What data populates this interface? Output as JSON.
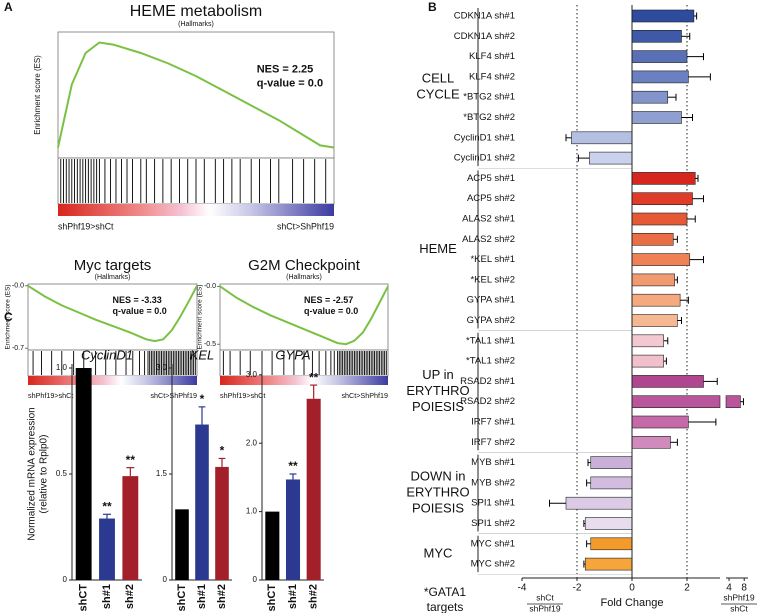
{
  "panel_labels": [
    "A",
    "B",
    "C"
  ],
  "chart_data": [
    {
      "type": "line",
      "title": "HEME metabolism",
      "subtitle": "(Hallmarks)",
      "ylabel": "Enrichment score (ES)",
      "annotations": [
        "NES = 2.25",
        "q-value = 0.0"
      ],
      "left_label": "shPhf19>shCt",
      "right_label": "shCt>ShPhf19",
      "color": "#7ac143",
      "xlim": [
        0,
        100
      ],
      "ylim": [
        -0.05,
        0.55
      ],
      "yticks": [],
      "x": [
        0,
        5,
        10,
        15,
        20,
        30,
        40,
        50,
        60,
        70,
        80,
        90,
        95,
        100
      ],
      "values": [
        0,
        0.3,
        0.45,
        0.5,
        0.49,
        0.45,
        0.4,
        0.34,
        0.27,
        0.2,
        0.13,
        0.05,
        0.01,
        0
      ],
      "hits": [
        1,
        2,
        3,
        4,
        5,
        6,
        7,
        8,
        9,
        10,
        11,
        12,
        13,
        14,
        15,
        17,
        19,
        21,
        23,
        25,
        27,
        30,
        32,
        35,
        38,
        41,
        44,
        47,
        50,
        53,
        57,
        60,
        63,
        66,
        70,
        73,
        77,
        80,
        85,
        89,
        93,
        97
      ]
    },
    {
      "type": "line",
      "title": "Myc targets",
      "subtitle": "(Hallmarks)",
      "ylabel": "Enrichment score (ES)",
      "annotations": [
        "NES = -3.33",
        "q-value = 0.0"
      ],
      "left_label": "shPhf19>shCt",
      "right_label": "shCt>ShPhf19",
      "color": "#7ac143",
      "xlim": [
        0,
        100
      ],
      "ylim": [
        -0.72,
        0.02
      ],
      "yticks": [
        {
          "value": 0,
          "label": "-0.0"
        },
        -0.7
      ],
      "x": [
        0,
        10,
        20,
        30,
        40,
        50,
        60,
        70,
        75,
        80,
        85,
        90,
        95,
        100
      ],
      "values": [
        0,
        -0.12,
        -0.22,
        -0.3,
        -0.38,
        -0.45,
        -0.52,
        -0.6,
        -0.62,
        -0.6,
        -0.5,
        -0.35,
        -0.18,
        0
      ],
      "hits": [
        3,
        8,
        14,
        20,
        27,
        33,
        40,
        46,
        52,
        58,
        62,
        66,
        69,
        71,
        72,
        73,
        74,
        75,
        76,
        77,
        78,
        79,
        80,
        81,
        82,
        83,
        84,
        85,
        86,
        87,
        88,
        89,
        90,
        91,
        92,
        93,
        94,
        95,
        96,
        97,
        98,
        99
      ]
    },
    {
      "type": "line",
      "title": "G2M Checkpoint",
      "subtitle": "(Hallmarks)",
      "ylabel": "Enrichment score (ES)",
      "annotations": [
        "NES = -2.57",
        "q-value = 0.0"
      ],
      "left_label": "shPhf19>shCt",
      "right_label": "shCt>ShPhf19",
      "color": "#7ac143",
      "xlim": [
        0,
        100
      ],
      "ylim": [
        -0.55,
        0.02
      ],
      "yticks": [
        {
          "value": 0,
          "label": "-0.0"
        },
        -0.5
      ],
      "x": [
        0,
        10,
        20,
        30,
        40,
        50,
        60,
        70,
        75,
        80,
        85,
        90,
        95,
        100
      ],
      "values": [
        0,
        -0.1,
        -0.18,
        -0.25,
        -0.31,
        -0.37,
        -0.43,
        -0.49,
        -0.5,
        -0.47,
        -0.4,
        -0.28,
        -0.14,
        0
      ],
      "hits": [
        2,
        6,
        12,
        18,
        25,
        31,
        38,
        44,
        50,
        55,
        59,
        63,
        66,
        68,
        70,
        71,
        72,
        73,
        74,
        75,
        76,
        77,
        78,
        79,
        80,
        81,
        82,
        83,
        84,
        85,
        86,
        87,
        88,
        89,
        90,
        91,
        92,
        93,
        94,
        95,
        96,
        97,
        98,
        99
      ]
    },
    {
      "type": "hbar",
      "xlabel": "Fold Change",
      "xlim": [
        -4,
        3.2
      ],
      "xticks": [
        -4,
        -2,
        0,
        2
      ],
      "x2lim": [
        3.2,
        9
      ],
      "x2ticks": [
        4,
        8
      ],
      "reference_lines": [
        -2,
        2
      ],
      "left_fraction": [
        "shCt",
        "shPhf19"
      ],
      "right_fraction": [
        "shPhf19",
        "shCt"
      ],
      "footnote": [
        "*GATA1",
        "targets"
      ],
      "groups": [
        {
          "label": [
            "CELL",
            "CYCLE"
          ],
          "rows": [
            {
              "label": "CDKN1A sh#1",
              "value": 2.25,
              "error": 0.1,
              "color": "#2f4b9e"
            },
            {
              "label": "CDKN1A sh#2",
              "value": 1.8,
              "error": 0.3,
              "color": "#3e59a8"
            },
            {
              "label": "KLF4 sh#1",
              "value": 2.0,
              "error": 0.6,
              "color": "#5a70b6"
            },
            {
              "label": "KLF4 sh#2",
              "value": 2.05,
              "error": 0.8,
              "color": "#6b80c0"
            },
            {
              "label": "*BTG2 sh#1",
              "value": 1.3,
              "error": 0.3,
              "color": "#8394cb"
            },
            {
              "label": "*BTG2 sh#2",
              "value": 1.8,
              "error": 0.4,
              "color": "#8f9fd0"
            },
            {
              "label": "CyclinD1 sh#1",
              "value": -2.2,
              "error": 0.2,
              "color": "#b4bfe2"
            },
            {
              "label": "CyclinD1 sh#2",
              "value": -1.55,
              "error": 0.4,
              "color": "#c9d1ec"
            }
          ]
        },
        {
          "label": [
            "HEME"
          ],
          "rows": [
            {
              "label": "ACP5 sh#1",
              "value": 2.3,
              "error": 0.1,
              "color": "#d7261e"
            },
            {
              "label": "ACP5 sh#2",
              "value": 2.2,
              "error": 0.4,
              "color": "#df3b28"
            },
            {
              "label": "ALAS2 sh#1",
              "value": 2.0,
              "error": 0.3,
              "color": "#e55a35"
            },
            {
              "label": "ALAS2 sh#2",
              "value": 1.5,
              "error": 0.15,
              "color": "#ea6d45"
            },
            {
              "label": "*KEL sh#1",
              "value": 2.1,
              "error": 0.5,
              "color": "#ee8256"
            },
            {
              "label": "*KEL sh#2",
              "value": 1.55,
              "error": 0.1,
              "color": "#f19a70"
            },
            {
              "label": "GYPA sh#1",
              "value": 1.75,
              "error": 0.3,
              "color": "#f4a97e"
            },
            {
              "label": "GYPA sh#2",
              "value": 1.65,
              "error": 0.15,
              "color": "#f6b892"
            }
          ]
        },
        {
          "label": [
            "UP in",
            "ERYTHRO",
            "POIESIS"
          ],
          "rows": [
            {
              "label": "*TAL1 sh#1",
              "value": 1.15,
              "error": 0.15,
              "color": "#f3c8d0"
            },
            {
              "label": "*TAL1 sh#2",
              "value": 1.15,
              "error": 0.1,
              "color": "#f0c0cb"
            },
            {
              "label": "RSAD2 sh#1",
              "value": 2.6,
              "error": 0.5,
              "color": "#b0468f"
            },
            {
              "label": "RSAD2 sh#2",
              "value": 7,
              "error": 0.8,
              "color": "#b9559a"
            },
            {
              "label": "IRF7 sh#1",
              "value": 2.05,
              "error": 1.0,
              "color": "#c46aa8"
            },
            {
              "label": "IRF7 sh#2",
              "value": 1.4,
              "error": 0.25,
              "color": "#d08abb"
            }
          ]
        },
        {
          "label": [
            "DOWN in",
            "ERYTHRO",
            "POIESIS"
          ],
          "rows": [
            {
              "label": "MYB sh#1",
              "value": -1.5,
              "error": 0.1,
              "color": "#c8b0d8"
            },
            {
              "label": "MYB sh#2",
              "value": -1.5,
              "error": 0.15,
              "color": "#d2bde0"
            },
            {
              "label": "SPI1 sh#1",
              "value": -2.4,
              "error": 0.6,
              "color": "#dccbe6"
            },
            {
              "label": "SPI1 sh#2",
              "value": -1.7,
              "error": 0.05,
              "color": "#e8dcef"
            }
          ]
        },
        {
          "label": [
            "MYC"
          ],
          "rows": [
            {
              "label": "MYC sh#1",
              "value": -1.5,
              "error": 0.15,
              "color": "#f39a2d"
            },
            {
              "label": "MYC sh#2",
              "value": -1.7,
              "error": 0.05,
              "color": "#f5a53c"
            }
          ]
        }
      ]
    },
    {
      "type": "bar",
      "title": "CyclinD1",
      "ylabel": [
        "Normalized mRNA expression",
        "(relative to Rplp0)"
      ],
      "categories": [
        "shCT",
        "sh#1",
        "sh#2"
      ],
      "values": [
        1,
        0.29,
        0.49
      ],
      "errors": [
        0,
        0.02,
        0.04
      ],
      "significance": [
        null,
        "**",
        "**"
      ],
      "colors": [
        "#000000",
        "#2b3990",
        "#a3202a"
      ],
      "ylim": [
        0,
        1
      ],
      "yticks": [
        0,
        0.5,
        {
          "value": 1,
          "label": "1.0"
        }
      ]
    },
    {
      "type": "bar",
      "title": "KEL",
      "categories": [
        "shCT",
        "sh#1",
        "sh#2"
      ],
      "values": [
        1,
        2.2,
        1.6
      ],
      "errors": [
        0,
        0.25,
        0.12
      ],
      "significance": [
        null,
        "*",
        "*"
      ],
      "colors": [
        "#000000",
        "#2b3990",
        "#a3202a"
      ],
      "ylim": [
        0,
        3
      ],
      "yticks": [
        0,
        1.5,
        {
          "value": 3,
          "label": "3.0"
        }
      ]
    },
    {
      "type": "bar",
      "title": "GYPA",
      "categories": [
        "shCT",
        "sh#1",
        "sh#2"
      ],
      "values": [
        1,
        1.47,
        2.65
      ],
      "errors": [
        0,
        0.08,
        0.2
      ],
      "significance": [
        null,
        "**",
        "**"
      ],
      "colors": [
        "#000000",
        "#2b3990",
        "#a3202a"
      ],
      "ylim": [
        0,
        3.1
      ],
      "yticks": [
        0,
        {
          "value": 1,
          "label": "1.0"
        },
        {
          "value": 2,
          "label": "2.0"
        },
        {
          "value": 3,
          "label": "3.0"
        }
      ]
    }
  ]
}
